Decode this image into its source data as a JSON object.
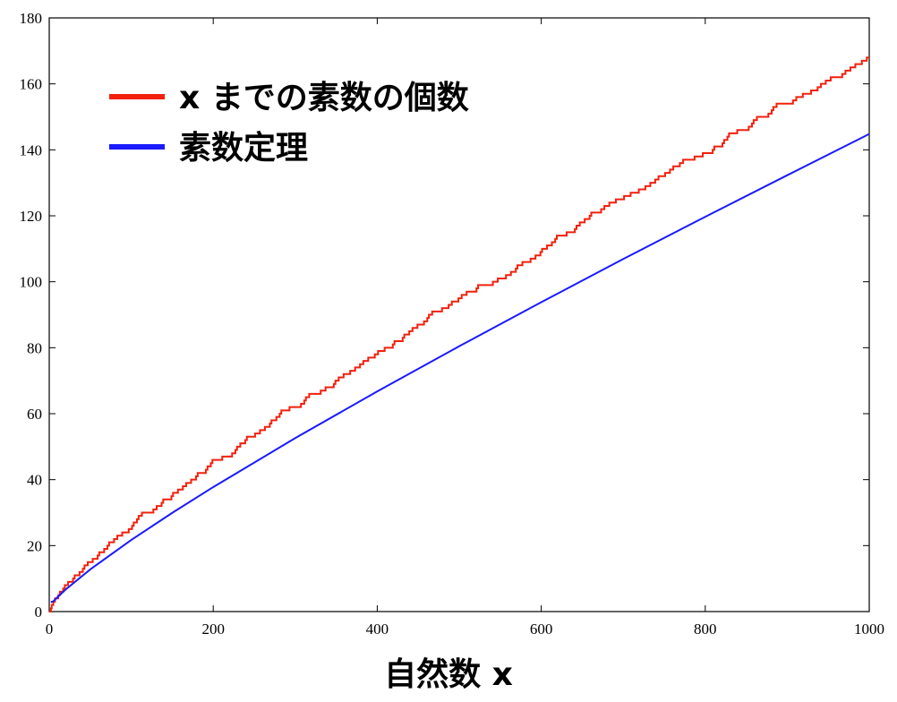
{
  "chart_data": {
    "type": "line",
    "x_label": "自然数 x",
    "xlim": [
      0,
      1000
    ],
    "ylim": [
      0,
      180
    ],
    "xticks": [
      0,
      200,
      400,
      600,
      800,
      1000
    ],
    "yticks": [
      0,
      20,
      40,
      60,
      80,
      100,
      120,
      140,
      160,
      180
    ],
    "legend": "top-left",
    "series": [
      {
        "name": "x までの素数の個数",
        "color": "#f2200d",
        "step": "post",
        "x": [
          0,
          2,
          3,
          5,
          7,
          11,
          13,
          17,
          19,
          23,
          29,
          31,
          37,
          41,
          43,
          47,
          53,
          59,
          61,
          67,
          71,
          73,
          79,
          83,
          89,
          97,
          101,
          103,
          107,
          109,
          113,
          127,
          131,
          137,
          139,
          149,
          151,
          157,
          163,
          167,
          173,
          179,
          181,
          191,
          193,
          197,
          199,
          211,
          223,
          227,
          229,
          233,
          239,
          241,
          251,
          257,
          263,
          269,
          271,
          277,
          281,
          283,
          293,
          307,
          311,
          313,
          317,
          331,
          337,
          347,
          349,
          353,
          359,
          367,
          373,
          379,
          383,
          389,
          397,
          401,
          409,
          419,
          421,
          431,
          433,
          439,
          443,
          449,
          457,
          461,
          463,
          467,
          479,
          487,
          491,
          499,
          503,
          509,
          521,
          523,
          541,
          547,
          557,
          563,
          569,
          571,
          577,
          587,
          593,
          599,
          601,
          607,
          613,
          617,
          619,
          631,
          641,
          643,
          647,
          653,
          659,
          661,
          673,
          677,
          683,
          691,
          701,
          709,
          719,
          727,
          733,
          739,
          743,
          751,
          757,
          761,
          769,
          773,
          787,
          797,
          809,
          811,
          821,
          823,
          827,
          829,
          839,
          853,
          857,
          859,
          863,
          877,
          881,
          883,
          887,
          907,
          911,
          919,
          929,
          937,
          941,
          947,
          953,
          967,
          971,
          977,
          983,
          991,
          997,
          1000
        ],
        "values": [
          0,
          1,
          2,
          3,
          4,
          5,
          6,
          7,
          8,
          9,
          10,
          11,
          12,
          13,
          14,
          15,
          16,
          17,
          18,
          19,
          20,
          21,
          22,
          23,
          24,
          25,
          26,
          27,
          28,
          29,
          30,
          31,
          32,
          33,
          34,
          35,
          36,
          37,
          38,
          39,
          40,
          41,
          42,
          43,
          44,
          45,
          46,
          47,
          48,
          49,
          50,
          51,
          52,
          53,
          54,
          55,
          56,
          57,
          58,
          59,
          60,
          61,
          62,
          63,
          64,
          65,
          66,
          67,
          68,
          69,
          70,
          71,
          72,
          73,
          74,
          75,
          76,
          77,
          78,
          79,
          80,
          81,
          82,
          83,
          84,
          85,
          86,
          87,
          88,
          89,
          90,
          91,
          92,
          93,
          94,
          95,
          96,
          97,
          98,
          99,
          100,
          101,
          102,
          103,
          104,
          105,
          106,
          107,
          108,
          109,
          110,
          111,
          112,
          113,
          114,
          115,
          116,
          117,
          118,
          119,
          120,
          121,
          122,
          123,
          124,
          125,
          126,
          127,
          128,
          129,
          130,
          131,
          132,
          133,
          134,
          135,
          136,
          137,
          138,
          139,
          140,
          141,
          142,
          143,
          144,
          145,
          146,
          147,
          148,
          149,
          150,
          151,
          152,
          153,
          154,
          155,
          156,
          157,
          158,
          159,
          160,
          161,
          162,
          163,
          164,
          165,
          166,
          167,
          168,
          168
        ]
      },
      {
        "name": "素数定理",
        "color": "#1a1aff",
        "x": [
          2,
          5,
          10,
          20,
          50,
          100,
          150,
          200,
          300,
          400,
          500,
          600,
          700,
          800,
          900,
          1000
        ],
        "values": [
          2.885,
          3.107,
          4.343,
          6.676,
          12.78,
          21.71,
          29.93,
          37.75,
          52.59,
          66.76,
          80.45,
          93.79,
          106.9,
          119.7,
          132.3,
          144.8
        ]
      }
    ]
  }
}
